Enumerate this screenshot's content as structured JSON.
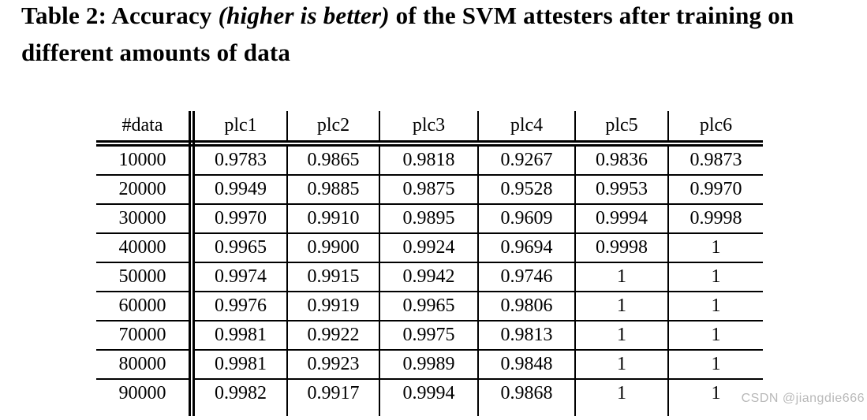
{
  "title": {
    "part1": "Table 2: Accuracy ",
    "emphasis": "(higher is better)",
    "part2": " of the SVM attesters after training on different amounts of data"
  },
  "table": {
    "type": "table",
    "columns": [
      "#data",
      "plc1",
      "plc2",
      "plc3",
      "plc4",
      "plc5",
      "plc6"
    ],
    "rows": [
      [
        "10000",
        "0.9783",
        "0.9865",
        "0.9818",
        "0.9267",
        "0.9836",
        "0.9873"
      ],
      [
        "20000",
        "0.9949",
        "0.9885",
        "0.9875",
        "0.9528",
        "0.9953",
        "0.9970"
      ],
      [
        "30000",
        "0.9970",
        "0.9910",
        "0.9895",
        "0.9609",
        "0.9994",
        "0.9998"
      ],
      [
        "40000",
        "0.9965",
        "0.9900",
        "0.9924",
        "0.9694",
        "0.9998",
        "1"
      ],
      [
        "50000",
        "0.9974",
        "0.9915",
        "0.9942",
        "0.9746",
        "1",
        "1"
      ],
      [
        "60000",
        "0.9976",
        "0.9919",
        "0.9965",
        "0.9806",
        "1",
        "1"
      ],
      [
        "70000",
        "0.9981",
        "0.9922",
        "0.9975",
        "0.9813",
        "1",
        "1"
      ],
      [
        "80000",
        "0.9981",
        "0.9923",
        "0.9989",
        "0.9848",
        "1",
        "1"
      ],
      [
        "90000",
        "0.9982",
        "0.9917",
        "0.9994",
        "0.9868",
        "1",
        "1"
      ]
    ]
  },
  "watermark": {
    "text": "CSDN @jiangdie666"
  },
  "colors": {
    "text": "#000000",
    "background": "#ffffff",
    "watermark": "#b9b9b9"
  }
}
